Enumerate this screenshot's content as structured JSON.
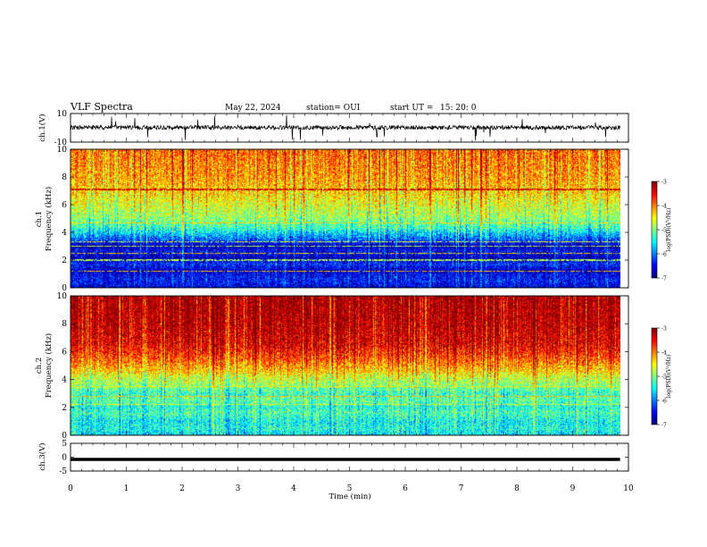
{
  "chart_data": {
    "type": "heatmap",
    "title": "VLF Spectra",
    "date": "May 22, 2024",
    "station": "station= OUI",
    "start_label": "start  UT =",
    "start_time": "15: 20: 0",
    "x_axis": {
      "label": "Time  (min)",
      "range": [
        0,
        10
      ],
      "ticks": [
        "0",
        "1",
        "2",
        "3",
        "4",
        "5",
        "6",
        "7",
        "8",
        "9",
        "10"
      ]
    },
    "data_end_min": 9.85,
    "panels": [
      {
        "name": "ch.1",
        "type": "line",
        "ylabel": "ch.1(V)",
        "ylim": [
          -10,
          10
        ],
        "y_ticks": [
          "10",
          "-10"
        ],
        "trace_baseline": 0.2,
        "trace_amplitude": 1.5
      },
      {
        "name": "ch.1 spectrogram",
        "type": "heatmap",
        "ylabel_line1": "ch.1",
        "ylabel_line2": "Frequency  (kHz)",
        "ylim": [
          0,
          10
        ],
        "y_ticks": [
          "0",
          "2",
          "4",
          "6",
          "8",
          "10"
        ],
        "profile": [
          [
            0,
            -6.6
          ],
          [
            0.5,
            -6.4
          ],
          [
            0.9,
            -6.5
          ],
          [
            1.3,
            -6.7
          ],
          [
            1.7,
            -6.3
          ],
          [
            2.1,
            -6.8
          ],
          [
            2.6,
            -6.5
          ],
          [
            3.0,
            -6.8
          ],
          [
            3.4,
            -6.2
          ],
          [
            3.8,
            -5.8
          ],
          [
            4.3,
            -5.3
          ],
          [
            5.0,
            -4.9
          ],
          [
            6.0,
            -4.6
          ],
          [
            7.0,
            -4.3
          ],
          [
            8.0,
            -4.1
          ],
          [
            9.0,
            -4.0
          ],
          [
            10.0,
            -3.9
          ]
        ],
        "lines_khz": [
          [
            1.2,
            -4.2
          ],
          [
            2.0,
            -4.8
          ],
          [
            2.5,
            -4.3
          ],
          [
            3.0,
            -4.8
          ],
          [
            3.3,
            -4.6
          ],
          [
            4.7,
            -4.3
          ],
          [
            7.1,
            -3.3
          ]
        ],
        "colorbar": {
          "min": -7,
          "max": -3,
          "ticks": [
            "-3",
            "-4",
            "-5",
            "-6",
            "-7"
          ],
          "label": "log(PSD)(V²/Hz)"
        }
      },
      {
        "name": "ch.2 spectrogram",
        "type": "heatmap",
        "ylabel_line1": "ch.2",
        "ylabel_line2": "Frequency  (kHz)",
        "ylim": [
          0,
          10
        ],
        "y_ticks": [
          "0",
          "2",
          "4",
          "6",
          "8",
          "10"
        ],
        "profile": [
          [
            0,
            -5.6
          ],
          [
            0.5,
            -5.4
          ],
          [
            1.0,
            -5.5
          ],
          [
            1.6,
            -5.2
          ],
          [
            2.0,
            -5.4
          ],
          [
            2.5,
            -5.1
          ],
          [
            3.0,
            -5.3
          ],
          [
            3.6,
            -4.9
          ],
          [
            4.2,
            -4.6
          ],
          [
            4.8,
            -4.2
          ],
          [
            5.5,
            -3.8
          ],
          [
            6.5,
            -3.4
          ],
          [
            8.0,
            -3.2
          ],
          [
            10.0,
            -3.1
          ]
        ],
        "lines_khz": [
          [
            2.2,
            -4.5
          ],
          [
            2.8,
            -4.2
          ],
          [
            3.5,
            -4.4
          ],
          [
            4.6,
            -4.2
          ]
        ],
        "colorbar": {
          "min": -7,
          "max": -3,
          "ticks": [
            "-3",
            "-4",
            "-5",
            "-6",
            "-7"
          ],
          "label": "log(PSD)(V²/Hz)"
        }
      },
      {
        "name": "ch.3",
        "type": "line",
        "ylabel": "ch.3(V)",
        "ylim": [
          -5,
          5
        ],
        "y_ticks": [
          "5",
          "0",
          "-5"
        ],
        "trace_value": -0.8
      }
    ],
    "grid": false
  }
}
